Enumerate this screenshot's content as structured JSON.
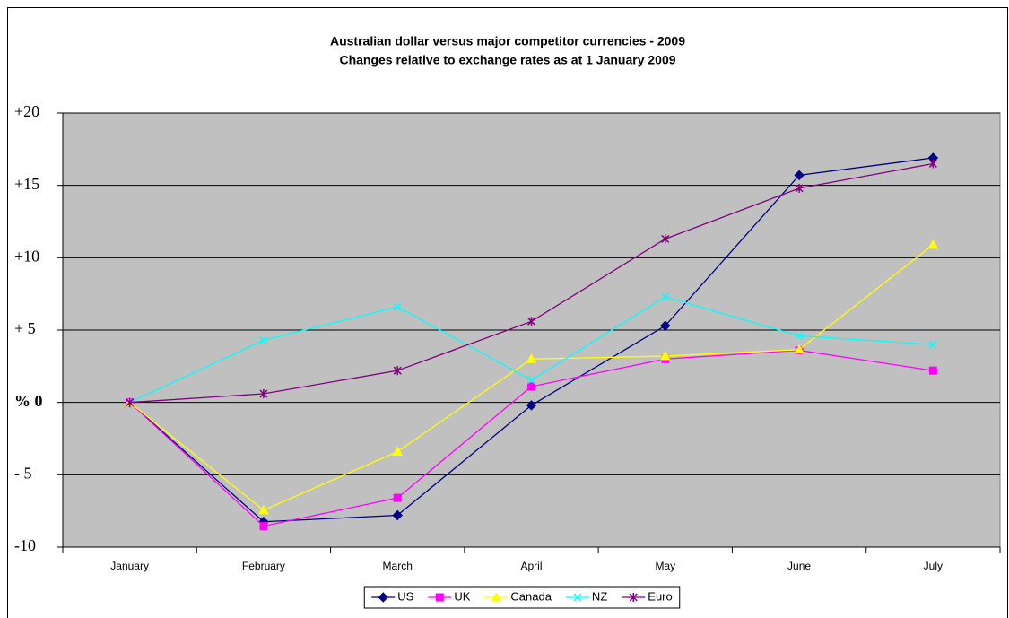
{
  "chart_data": {
    "type": "line",
    "title": "Australian dollar versus major competitor currencies - 2009",
    "subtitle": "Changes relative to exchange rates as at 1 January 2009",
    "categories": [
      "January",
      "February",
      "March",
      "April",
      "May",
      "June",
      "July"
    ],
    "series": [
      {
        "name": "US",
        "color": "#000080",
        "marker": "diamond",
        "values": [
          0,
          -8.25,
          -7.8,
          -0.2,
          5.3,
          15.7,
          16.9
        ]
      },
      {
        "name": "UK",
        "color": "#ff00ff",
        "marker": "square",
        "values": [
          0,
          -8.55,
          -6.6,
          1.1,
          3.0,
          3.6,
          2.2
        ]
      },
      {
        "name": "Canada",
        "color": "#ffff00",
        "marker": "triangle",
        "values": [
          0,
          -7.45,
          -3.4,
          3.0,
          3.2,
          3.65,
          10.9
        ]
      },
      {
        "name": "NZ",
        "color": "#00ffff",
        "marker": "x",
        "values": [
          0,
          4.3,
          6.6,
          1.55,
          7.3,
          4.6,
          4.0
        ]
      },
      {
        "name": "Euro",
        "color": "#800080",
        "marker": "star",
        "values": [
          0,
          0.6,
          2.2,
          5.6,
          11.3,
          14.8,
          16.5
        ]
      }
    ],
    "ylim": [
      -10,
      20
    ],
    "yticks": [
      {
        "value": -10,
        "label": "-10"
      },
      {
        "value": -5,
        "label": "- 5"
      },
      {
        "value": 0,
        "label": "% 0"
      },
      {
        "value": 5,
        "label": "+ 5"
      },
      {
        "value": 10,
        "label": "+10"
      },
      {
        "value": 15,
        "label": "+15"
      },
      {
        "value": 20,
        "label": "+20"
      }
    ],
    "grid": true,
    "legend": "bottom"
  }
}
